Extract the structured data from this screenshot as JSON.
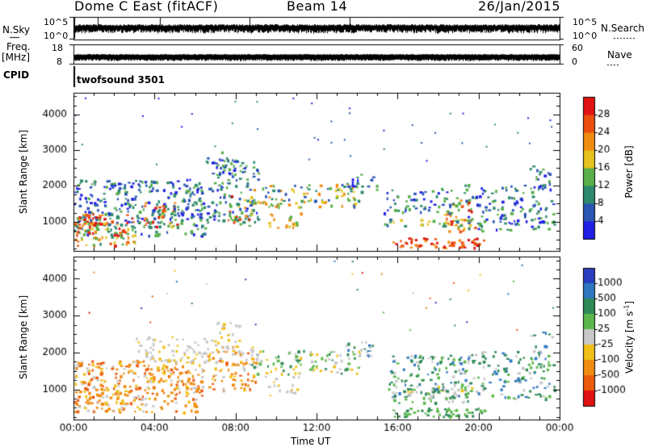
{
  "header": {
    "title": "Dome C East (fitACF)",
    "beam": "Beam 14",
    "date": "26/Jan/2015"
  },
  "top_panels": {
    "nsky_label": "N.Sky",
    "nsky_ticks": [
      "10^5",
      "10^0"
    ],
    "nsearch_label": "N.Search",
    "nsearch_ticks": [
      "10^5",
      "10^0"
    ],
    "freq_label": "Freq.",
    "freq_unit": "[MHz]",
    "freq_ticks": [
      "18",
      "8"
    ],
    "nave_label": "Nave",
    "nave_ticks": [
      "60",
      "0"
    ],
    "cpid_label": "CPID",
    "cpid_value": "twofsound 3501"
  },
  "chart_data": [
    {
      "type": "heatmap",
      "title": "",
      "xlabel": "Time UT",
      "ylabel": "Slant Range [km]",
      "x_ticks": [
        "00:00",
        "04:00",
        "08:00",
        "12:00",
        "16:00",
        "20:00",
        "00:00"
      ],
      "y_ticks": [
        "1000",
        "2000",
        "3000",
        "4000"
      ],
      "xlim_hours": [
        0,
        24
      ],
      "ylim_km": [
        180,
        4600
      ],
      "colorbar": {
        "label": "Power [dB]",
        "ticks": [
          "4",
          "8",
          "12",
          "16",
          "20",
          "24",
          "28"
        ],
        "colors": [
          "#1f1fe6",
          "#2a55b4",
          "#2e8a6e",
          "#59b04a",
          "#e6c21e",
          "#f08c12",
          "#ec4f0d",
          "#e01212"
        ]
      },
      "regions": [
        {
          "t": [
            0.0,
            6.5
          ],
          "r": [
            300,
            2500
          ],
          "level": "mixed, strongest near 0-2 h below 1200 km"
        },
        {
          "t": [
            6.5,
            9.0
          ],
          "r": [
            600,
            3200
          ],
          "level": "blue/green with orange streaks"
        },
        {
          "t": [
            9.0,
            15.0
          ],
          "r": [
            1200,
            2400
          ],
          "level": "green/orange band near 1800 km"
        },
        {
          "t": [
            15.0,
            20.5
          ],
          "r": [
            200,
            2200
          ],
          "level": "red/orange layer below 600 km"
        },
        {
          "t": [
            20.5,
            24.0
          ],
          "r": [
            500,
            2600
          ],
          "level": "blue/green"
        }
      ]
    },
    {
      "type": "heatmap",
      "title": "",
      "xlabel": "Time UT",
      "ylabel": "Slant Range [km]",
      "x_ticks": [
        "00:00",
        "04:00",
        "08:00",
        "12:00",
        "16:00",
        "20:00",
        "00:00"
      ],
      "y_ticks": [
        "1000",
        "2000",
        "3000",
        "4000"
      ],
      "xlim_hours": [
        0,
        24
      ],
      "ylim_km": [
        180,
        4600
      ],
      "colorbar": {
        "label": "Velocity [m s-1]",
        "ticks": [
          "1000",
          "500",
          "100",
          "25",
          "-25",
          "-100",
          "-500",
          "-1000"
        ],
        "colors": [
          "#2a3fc0",
          "#2e78c2",
          "#2e8a56",
          "#5ab84a",
          "#c8c8c8",
          "#f0c018",
          "#f08c12",
          "#ec5a0c",
          "#e01212"
        ]
      },
      "regions": [
        {
          "t": [
            0.0,
            9.5
          ],
          "r": [
            300,
            2300
          ],
          "level": "negative velocity, orange"
        },
        {
          "t": [
            2.5,
            8.5
          ],
          "r": [
            1500,
            3000
          ],
          "level": "near zero, grey"
        },
        {
          "t": [
            9.5,
            15.5
          ],
          "r": [
            1300,
            2300
          ],
          "level": "grey/green mix"
        },
        {
          "t": [
            15.0,
            20.5
          ],
          "r": [
            200,
            2200
          ],
          "level": "positive velocity, green"
        },
        {
          "t": [
            20.5,
            24.0
          ],
          "r": [
            500,
            2600
          ],
          "level": "green/grey"
        }
      ]
    }
  ]
}
